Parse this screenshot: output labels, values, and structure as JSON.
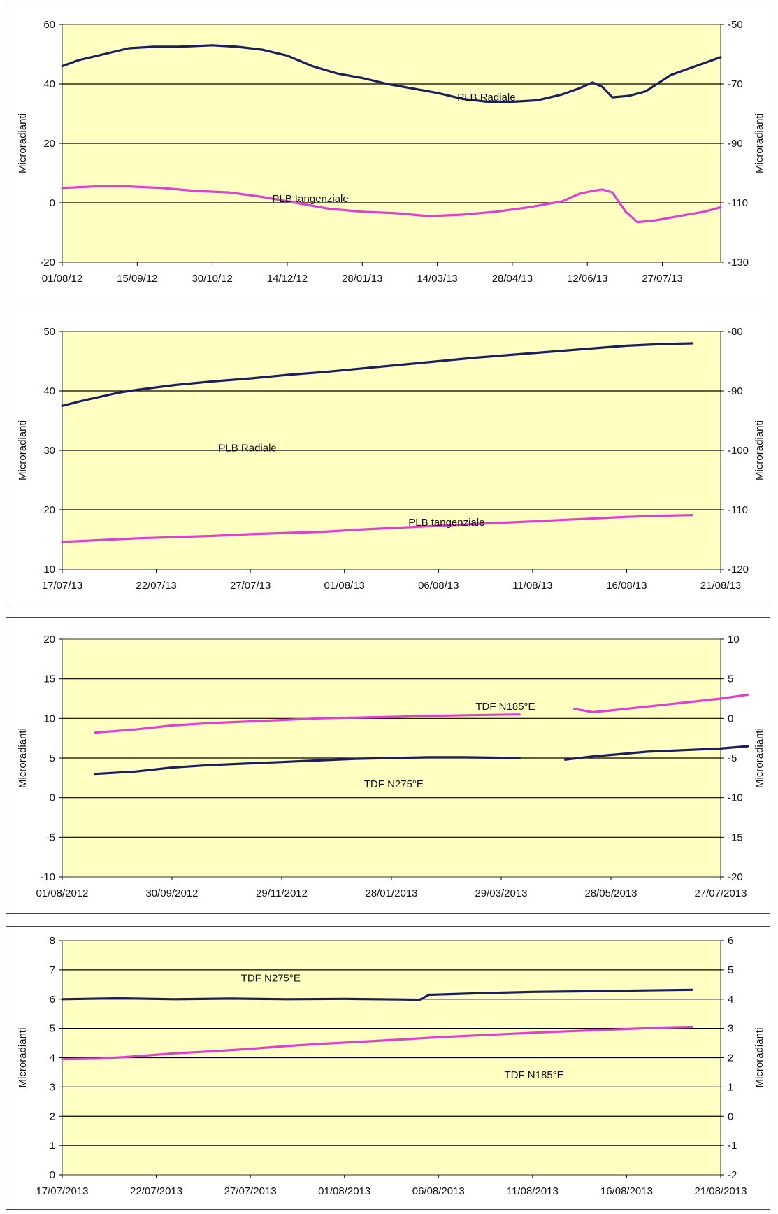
{
  "chart_data": [
    {
      "type": "line",
      "ylabel_left": "Microradianti",
      "ylabel_right": "Microradianti",
      "ylim_left": [
        -20,
        60
      ],
      "ylim_right": [
        -130,
        -50
      ],
      "yticks_left": [
        "60",
        "40",
        "20",
        "0",
        "-20"
      ],
      "yticks_right": [
        "-50",
        "-70",
        "-90",
        "-110",
        "-130"
      ],
      "xlim": [
        0,
        395
      ],
      "xticks": [
        {
          "x": 0,
          "label": "01/08/12"
        },
        {
          "x": 45,
          "label": "15/09/12"
        },
        {
          "x": 90,
          "label": "30/10/12"
        },
        {
          "x": 135,
          "label": "14/12/12"
        },
        {
          "x": 180,
          "label": "28/01/13"
        },
        {
          "x": 225,
          "label": "14/03/13"
        },
        {
          "x": 270,
          "label": "28/04/13"
        },
        {
          "x": 315,
          "label": "12/06/13"
        },
        {
          "x": 360,
          "label": "27/07/13"
        }
      ],
      "series": [
        {
          "name": "PLB Radiale",
          "color": "#1b1f5e",
          "x": [
            0,
            10,
            25,
            40,
            55,
            70,
            90,
            105,
            120,
            135,
            150,
            165,
            180,
            195,
            210,
            225,
            240,
            255,
            270,
            285,
            300,
            310,
            318,
            324,
            330,
            340,
            350,
            365,
            380,
            395
          ],
          "y": [
            46,
            48,
            50,
            52,
            52.5,
            52.5,
            53,
            52.5,
            51.5,
            49.5,
            46,
            43.5,
            42,
            40,
            38.5,
            37,
            35,
            34,
            34,
            34.5,
            36.5,
            38.5,
            40.5,
            39,
            35.5,
            36,
            37.5,
            43,
            46,
            49
          ]
        },
        {
          "name": "PLB tangenziale",
          "color": "#e040d0",
          "x": [
            0,
            20,
            40,
            60,
            80,
            100,
            120,
            140,
            160,
            180,
            200,
            220,
            240,
            260,
            280,
            300,
            310,
            318,
            324,
            330,
            338,
            345,
            355,
            370,
            385,
            395
          ],
          "y": [
            5,
            5.5,
            5.5,
            5,
            4,
            3.5,
            2,
            0,
            -2,
            -3,
            -3.5,
            -4.5,
            -4,
            -3,
            -1.5,
            0.5,
            3,
            4,
            4.5,
            3.5,
            -3,
            -6.5,
            -6,
            -4.5,
            -3,
            -1.5
          ]
        }
      ],
      "annotations": [
        {
          "x": 237,
          "y": 34.3,
          "text": "PLB Radiale"
        },
        {
          "x": 126,
          "y": 0.2,
          "text": "PLB tangenziale"
        }
      ]
    },
    {
      "type": "line",
      "ylabel_left": "Microradianti",
      "ylabel_right": "Microradianti",
      "ylim_left": [
        10,
        50
      ],
      "ylim_right": [
        -120,
        -80
      ],
      "yticks_left": [
        "50",
        "40",
        "30",
        "20",
        "10"
      ],
      "yticks_right": [
        "-80",
        "-90",
        "-100",
        "-110",
        "-120"
      ],
      "xlim": [
        0,
        35
      ],
      "xticks": [
        {
          "x": 0,
          "label": "17/07/13"
        },
        {
          "x": 5,
          "label": "22/07/13"
        },
        {
          "x": 10,
          "label": "27/07/13"
        },
        {
          "x": 15,
          "label": "01/08/13"
        },
        {
          "x": 20,
          "label": "06/08/13"
        },
        {
          "x": 25,
          "label": "11/08/13"
        },
        {
          "x": 30,
          "label": "16/08/13"
        },
        {
          "x": 35,
          "label": "21/08/13"
        }
      ],
      "series": [
        {
          "name": "PLB Radiale",
          "color": "#1b1f5e",
          "x": [
            0,
            1,
            2,
            3,
            4,
            6,
            8,
            10,
            12,
            14,
            16,
            18,
            20,
            22,
            24,
            26,
            28,
            30,
            32,
            33.5
          ],
          "y": [
            37.5,
            38.3,
            39,
            39.7,
            40.2,
            41,
            41.6,
            42.1,
            42.7,
            43.2,
            43.8,
            44.4,
            45,
            45.6,
            46.1,
            46.6,
            47.1,
            47.6,
            47.9,
            48
          ]
        },
        {
          "name": "PLB tangenziale",
          "color": "#e040d0",
          "x": [
            0,
            2,
            4,
            6,
            8,
            10,
            12,
            14,
            16,
            18,
            20,
            22,
            24,
            26,
            28,
            30,
            32,
            33.5
          ],
          "y": [
            14.6,
            14.9,
            15.2,
            15.4,
            15.6,
            15.9,
            16.1,
            16.3,
            16.7,
            17,
            17.3,
            17.6,
            17.9,
            18.2,
            18.5,
            18.8,
            19,
            19.1
          ]
        }
      ],
      "annotations": [
        {
          "x": 8.3,
          "y": 29.8,
          "text": "PLB Radiale"
        },
        {
          "x": 18.4,
          "y": 17.3,
          "text": "PLB tangenziale"
        }
      ]
    },
    {
      "type": "line",
      "ylabel_left": "Microradianti",
      "ylabel_right": "Microradianti",
      "ylim_left": [
        -10,
        20
      ],
      "ylim_right": [
        -20,
        10
      ],
      "yticks_left": [
        "20",
        "15",
        "10",
        "5",
        "0",
        "-5",
        "-10"
      ],
      "yticks_right": [
        "10",
        "5",
        "0",
        "-5",
        "-10",
        "-15",
        "-20"
      ],
      "xlim": [
        0,
        360
      ],
      "xticks": [
        {
          "x": 0,
          "label": "01/08/2012"
        },
        {
          "x": 60,
          "label": "30/09/2012"
        },
        {
          "x": 120,
          "label": "29/11/2012"
        },
        {
          "x": 180,
          "label": "28/01/2013"
        },
        {
          "x": 240,
          "label": "29/03/2013"
        },
        {
          "x": 300,
          "label": "28/05/2013"
        },
        {
          "x": 360,
          "label": "27/07/2013"
        }
      ],
      "series": [
        {
          "name": "TDF N185°E",
          "color": "#e040d0",
          "x": [
            18,
            40,
            60,
            80,
            100,
            120,
            140,
            160,
            180,
            200,
            220,
            250,
            null,
            280,
            290,
            300,
            320,
            340,
            360,
            375
          ],
          "y": [
            8.2,
            8.6,
            9.1,
            9.4,
            9.6,
            9.8,
            10,
            10.1,
            10.2,
            10.3,
            10.4,
            10.5,
            null,
            11.2,
            10.8,
            11,
            11.5,
            12,
            12.5,
            13
          ]
        },
        {
          "name": "TDF N275°E",
          "color": "#1b1f5e",
          "x": [
            18,
            40,
            60,
            80,
            100,
            120,
            140,
            160,
            180,
            200,
            220,
            250,
            null,
            275,
            290,
            300,
            320,
            340,
            360,
            375
          ],
          "y": [
            3,
            3.3,
            3.8,
            4.1,
            4.3,
            4.5,
            4.7,
            4.9,
            5,
            5.1,
            5.1,
            5,
            null,
            4.8,
            5.2,
            5.4,
            5.8,
            6,
            6.2,
            6.5
          ]
        }
      ],
      "annotations": [
        {
          "x": 226,
          "y": 11.1,
          "text": "TDF N185°E"
        },
        {
          "x": 165,
          "y": 1.3,
          "text": "TDF N275°E"
        }
      ]
    },
    {
      "type": "line",
      "ylabel_left": "Microradianti",
      "ylabel_right": "Microradianti",
      "ylim_left": [
        0,
        8
      ],
      "ylim_right": [
        -2,
        6
      ],
      "yticks_left": [
        "8",
        "7",
        "6",
        "5",
        "4",
        "3",
        "2",
        "1",
        "0"
      ],
      "yticks_right": [
        "6",
        "5",
        "4",
        "3",
        "2",
        "1",
        "0",
        "-1",
        "-2"
      ],
      "xlim": [
        0,
        35
      ],
      "xticks": [
        {
          "x": 0,
          "label": "17/07/2013"
        },
        {
          "x": 5,
          "label": "22/07/2013"
        },
        {
          "x": 10,
          "label": "27/07/2013"
        },
        {
          "x": 15,
          "label": "01/08/2013"
        },
        {
          "x": 20,
          "label": "06/08/2013"
        },
        {
          "x": 25,
          "label": "11/08/2013"
        },
        {
          "x": 30,
          "label": "16/08/2013"
        },
        {
          "x": 35,
          "label": "21/08/2013"
        }
      ],
      "series": [
        {
          "name": "TDF N275°E",
          "color": "#1b1f5e",
          "x": [
            0,
            3,
            6,
            9,
            12,
            15,
            18,
            19,
            19.5,
            22,
            25,
            28,
            31,
            33.5
          ],
          "y": [
            6,
            6.03,
            6,
            6.02,
            6,
            6.01,
            5.99,
            5.98,
            6.15,
            6.2,
            6.25,
            6.27,
            6.3,
            6.32
          ]
        },
        {
          "name": "TDF N185°E",
          "color": "#e040d0",
          "x": [
            0,
            2,
            4,
            6,
            8,
            10,
            12,
            14,
            16,
            18,
            20,
            22,
            24,
            26,
            28,
            30,
            32,
            33.5
          ],
          "y": [
            3.95,
            3.97,
            4.05,
            4.15,
            4.22,
            4.3,
            4.4,
            4.48,
            4.55,
            4.62,
            4.7,
            4.76,
            4.82,
            4.88,
            4.93,
            4.98,
            5.03,
            5.05
          ]
        }
      ],
      "annotations": [
        {
          "x": 9.5,
          "y": 6.6,
          "text": "TDF N275°E"
        },
        {
          "x": 23.5,
          "y": 3.3,
          "text": "TDF N185°E"
        }
      ]
    }
  ]
}
